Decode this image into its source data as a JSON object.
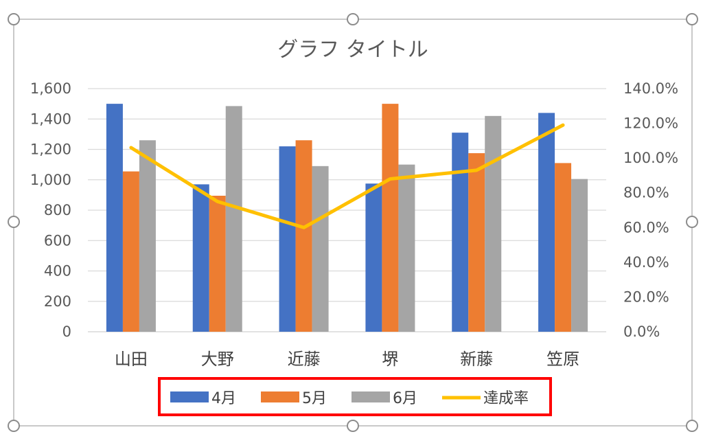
{
  "chart_data": {
    "type": "bar",
    "title": "グラフ タイトル",
    "categories": [
      "山田",
      "大野",
      "近藤",
      "堺",
      "新藤",
      "笠原"
    ],
    "series": [
      {
        "name": "4月",
        "type": "bar",
        "axis": "left",
        "color": "#4472C4",
        "values": [
          1500,
          970,
          1220,
          975,
          1310,
          1440
        ]
      },
      {
        "name": "5月",
        "type": "bar",
        "axis": "left",
        "color": "#ED7D31",
        "values": [
          1055,
          895,
          1260,
          1500,
          1175,
          1110
        ]
      },
      {
        "name": "6月",
        "type": "bar",
        "axis": "left",
        "color": "#A5A5A5",
        "values": [
          1260,
          1485,
          1090,
          1100,
          1420,
          1005
        ]
      },
      {
        "name": "達成率",
        "type": "line",
        "axis": "right",
        "color": "#FFC000",
        "values": [
          106,
          75,
          60,
          88,
          93,
          119
        ]
      }
    ],
    "ylim": [
      0,
      1600
    ],
    "y_ticks": [
      "0",
      "200",
      "400",
      "600",
      "800",
      "1,000",
      "1,200",
      "1,400",
      "1,600"
    ],
    "y2lim": [
      0,
      140
    ],
    "y2_ticks": [
      "0.0%",
      "20.0%",
      "40.0%",
      "60.0%",
      "80.0%",
      "100.0%",
      "120.0%",
      "140.0%"
    ],
    "grid": true,
    "legend_position": "bottom",
    "legend_highlight_color": "#FF0000"
  }
}
